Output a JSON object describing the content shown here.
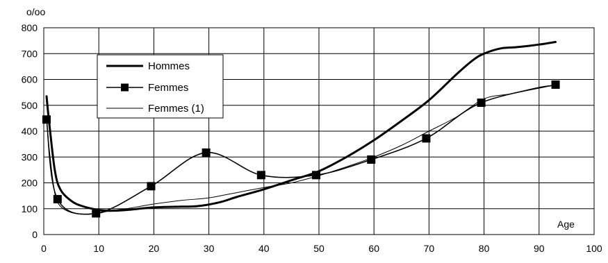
{
  "chart_data": {
    "type": "line",
    "title": "",
    "ylabel": "o/oo",
    "xlabel": "Age",
    "xlim": [
      0,
      100
    ],
    "ylim": [
      0,
      800
    ],
    "xticks": [
      0,
      10,
      20,
      30,
      40,
      50,
      60,
      70,
      80,
      90,
      100
    ],
    "yticks": [
      0,
      100,
      200,
      300,
      400,
      500,
      600,
      700,
      800
    ],
    "grid": true,
    "legend": {
      "placement": "upper-left"
    },
    "series": [
      {
        "name": "Hommes",
        "style": "thick",
        "markers": false,
        "x": [
          0.5,
          1,
          2,
          3,
          5,
          7,
          10,
          12,
          15,
          20,
          25,
          28,
          32,
          35,
          40,
          45,
          50,
          55,
          60,
          65,
          70,
          75,
          78,
          80,
          83,
          86,
          90,
          93
        ],
        "y": [
          535,
          430,
          250,
          175,
          130,
          110,
          95,
          92,
          95,
          105,
          108,
          110,
          125,
          145,
          175,
          210,
          245,
          300,
          365,
          440,
          520,
          620,
          675,
          700,
          720,
          725,
          735,
          745
        ]
      },
      {
        "name": "Femmes",
        "style": "medium",
        "markers": true,
        "x": [
          0.5,
          2.5,
          9.5,
          19.5,
          29.5,
          39.5,
          49.5,
          59.5,
          69.5,
          79.5,
          93
        ],
        "y": [
          445,
          137,
          82,
          187,
          317,
          230,
          230,
          290,
          372,
          510,
          580
        ]
      },
      {
        "name": "Femmes (1)",
        "style": "thin",
        "markers": false,
        "x": [
          0.5,
          1,
          2,
          3,
          5,
          7,
          8,
          10,
          12,
          15,
          20,
          25,
          30,
          35,
          40,
          45,
          50,
          55,
          60,
          65,
          70,
          75,
          80,
          85,
          90,
          93
        ],
        "y": [
          450,
          330,
          160,
          110,
          85,
          80,
          78,
          82,
          92,
          100,
          118,
          132,
          142,
          162,
          182,
          200,
          228,
          262,
          300,
          345,
          400,
          455,
          525,
          545,
          570,
          578
        ]
      }
    ]
  }
}
